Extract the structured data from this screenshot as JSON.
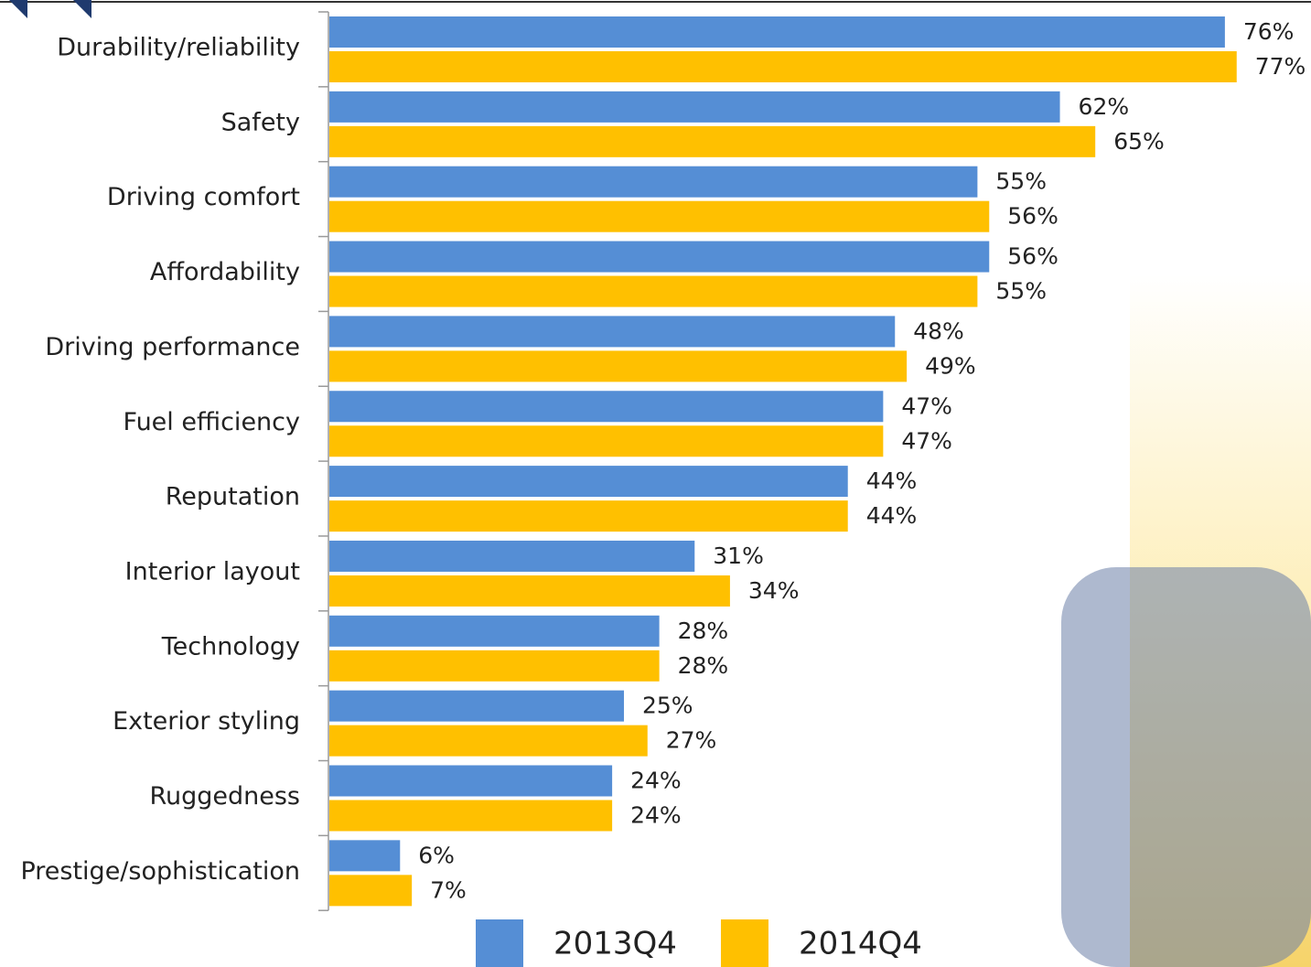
{
  "chart_data": {
    "type": "bar",
    "orientation": "horizontal",
    "categories": [
      "Durability/reliability",
      "Safety",
      "Driving comfort",
      "Affordability",
      "Driving performance",
      "Fuel efficiency",
      "Reputation",
      "Interior layout",
      "Technology",
      "Exterior styling",
      "Ruggedness",
      "Prestige/sophistication"
    ],
    "series": [
      {
        "name": "2013Q4",
        "color": "#558ed5",
        "values": [
          76,
          62,
          55,
          56,
          48,
          47,
          44,
          31,
          28,
          25,
          24,
          6
        ],
        "value_labels": [
          "76%",
          "62%",
          "55%",
          "56%",
          "48%",
          "47%",
          "44%",
          "31%",
          "28%",
          "25%",
          "24%",
          "6%"
        ]
      },
      {
        "name": "2014Q4",
        "color": "#ffc000",
        "values": [
          77,
          65,
          56,
          55,
          49,
          47,
          44,
          34,
          28,
          27,
          24,
          7
        ],
        "value_labels": [
          "77%",
          "65%",
          "56%",
          "55%",
          "49%",
          "47%",
          "44%",
          "34%",
          "28%",
          "27%",
          "24%",
          "7%"
        ]
      }
    ],
    "legend": "bottom"
  }
}
